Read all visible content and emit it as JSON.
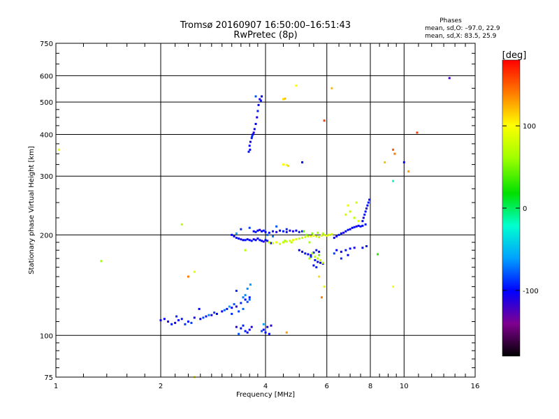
{
  "header": {
    "title_line1": "Tromsø 20160907 16:50:00–16:51:43",
    "title_line2": "RwPretec (8p)"
  },
  "stats": {
    "heading": "Phases",
    "line_o": "mean, sd,O: –97.0, 22.9",
    "line_x": "mean, sd,X: 83.5, 25.9"
  },
  "colorbar": {
    "label": "[deg]",
    "range": [
      -180,
      180
    ],
    "ticks": [
      100,
      0,
      -100
    ],
    "colors": {
      "180": "#ff0000",
      "140": "#ff7a00",
      "100": "#ffff00",
      "60": "#a0ff00",
      "20": "#00e000",
      "-20": "#00ffd0",
      "-60": "#00a0ff",
      "-100": "#0000ff",
      "-140": "#800090",
      "-180": "#000000"
    }
  },
  "chart_data": {
    "type": "scatter",
    "xlabel": "Frequency [MHz]",
    "ylabel": "Stationary phase Virtual Height [km]",
    "xscale": "log",
    "yscale": "log",
    "xlim": [
      1,
      16
    ],
    "ylim": [
      75,
      750
    ],
    "xticks": [
      1,
      2,
      4,
      6,
      8,
      10,
      16
    ],
    "yticks": [
      75,
      100,
      200,
      300,
      400,
      500,
      600,
      750
    ],
    "grid": true,
    "series": [
      {
        "points": [
          [
            2.0,
            111,
            -105
          ],
          [
            2.05,
            112,
            -100
          ],
          [
            2.1,
            110,
            -110
          ],
          [
            2.15,
            108,
            -95
          ],
          [
            2.2,
            109,
            -105
          ],
          [
            2.25,
            111,
            -100
          ],
          [
            2.35,
            108,
            -90
          ],
          [
            2.4,
            110,
            -100
          ],
          [
            2.5,
            113,
            -105
          ],
          [
            2.6,
            112,
            -100
          ],
          [
            2.7,
            114,
            -95
          ],
          [
            2.8,
            115,
            -110
          ],
          [
            2.9,
            116,
            -100
          ],
          [
            3.0,
            118,
            -105
          ],
          [
            3.1,
            120,
            -95
          ],
          [
            3.2,
            121,
            -100
          ],
          [
            3.3,
            122,
            -110
          ],
          [
            3.4,
            125,
            -90
          ],
          [
            3.5,
            128,
            -100
          ],
          [
            3.55,
            126,
            -80
          ],
          [
            3.6,
            130,
            -95
          ],
          [
            3.45,
            120,
            -75
          ],
          [
            3.35,
            118,
            -85
          ],
          [
            3.2,
            116,
            -90
          ],
          [
            3.6,
            128,
            -75
          ],
          [
            2.22,
            114,
            -90
          ],
          [
            2.45,
            109,
            -85
          ],
          [
            2.65,
            113,
            -80
          ],
          [
            2.85,
            117,
            -85
          ],
          [
            3.05,
            119,
            -75
          ],
          [
            3.25,
            124,
            -80
          ],
          [
            3.45,
            130,
            -70
          ],
          [
            3.55,
            138,
            -65
          ],
          [
            3.62,
            142,
            -60
          ],
          [
            3.15,
            122,
            -60
          ],
          [
            2.58,
            120,
            -100
          ],
          [
            2.3,
            112,
            -95
          ],
          [
            2.75,
            115,
            -70
          ],
          [
            3.3,
            136,
            -90
          ],
          [
            3.5,
            132,
            -65
          ],
          [
            3.3,
            106,
            -110
          ],
          [
            3.4,
            105,
            -100
          ],
          [
            3.5,
            103,
            -95
          ],
          [
            3.6,
            104,
            -105
          ],
          [
            3.45,
            107,
            -90
          ],
          [
            3.55,
            102,
            -100
          ],
          [
            3.35,
            101,
            -80
          ],
          [
            3.65,
            106,
            -110
          ],
          [
            3.95,
            104,
            -100
          ],
          [
            4.0,
            102,
            -95
          ],
          [
            4.05,
            106,
            -105
          ],
          [
            4.1,
            101,
            -100
          ],
          [
            3.9,
            103,
            -80
          ],
          [
            3.95,
            108,
            -60
          ],
          [
            4.15,
            107,
            -110
          ]
        ]
      },
      {
        "points": [
          [
            3.6,
            370,
            -100
          ],
          [
            3.62,
            380,
            -105
          ],
          [
            3.65,
            390,
            -95
          ],
          [
            3.68,
            400,
            -100
          ],
          [
            3.7,
            405,
            -110
          ],
          [
            3.72,
            415,
            -100
          ],
          [
            3.66,
            395,
            -90
          ],
          [
            3.61,
            360,
            -105
          ],
          [
            3.58,
            355,
            -95
          ],
          [
            3.75,
            430,
            -100
          ],
          [
            3.78,
            450,
            -105
          ],
          [
            3.8,
            470,
            -95
          ],
          [
            3.82,
            490,
            -100
          ],
          [
            3.85,
            510,
            -110
          ],
          [
            3.9,
            520,
            -100
          ],
          [
            3.88,
            505,
            -95
          ],
          [
            3.75,
            520,
            -80
          ]
        ]
      },
      {
        "points": [
          [
            3.2,
            200,
            -100
          ],
          [
            3.25,
            198,
            -105
          ],
          [
            3.3,
            196,
            -95
          ],
          [
            3.35,
            195,
            -100
          ],
          [
            3.4,
            194,
            -110
          ],
          [
            3.45,
            193,
            -100
          ],
          [
            3.5,
            193,
            -95
          ],
          [
            3.55,
            194,
            -105
          ],
          [
            3.6,
            193,
            -100
          ],
          [
            3.65,
            192,
            -95
          ],
          [
            3.7,
            194,
            -110
          ],
          [
            3.75,
            193,
            -100
          ],
          [
            3.8,
            195,
            -105
          ],
          [
            3.85,
            193,
            -95
          ],
          [
            3.9,
            192,
            -100
          ],
          [
            3.95,
            191,
            -110
          ],
          [
            4.0,
            193,
            -100
          ],
          [
            4.05,
            192,
            -95
          ],
          [
            4.1,
            190,
            -105
          ],
          [
            4.15,
            189,
            -100
          ],
          [
            3.7,
            205,
            -105
          ],
          [
            3.75,
            204,
            -95
          ],
          [
            3.8,
            206,
            -100
          ],
          [
            3.85,
            207,
            -110
          ],
          [
            3.9,
            205,
            -100
          ],
          [
            3.95,
            206,
            -95
          ],
          [
            4.0,
            204,
            -105
          ],
          [
            4.1,
            203,
            -100
          ],
          [
            4.2,
            205,
            -95
          ],
          [
            4.3,
            204,
            -110
          ],
          [
            4.4,
            206,
            -100
          ],
          [
            4.5,
            205,
            -95
          ],
          [
            4.6,
            204,
            -100
          ],
          [
            4.7,
            206,
            -105
          ],
          [
            4.8,
            205,
            -110
          ],
          [
            4.9,
            206,
            -100
          ],
          [
            5.0,
            204,
            -95
          ],
          [
            5.1,
            205,
            -100
          ],
          [
            3.4,
            208,
            -90
          ],
          [
            3.6,
            210,
            -85
          ],
          [
            4.3,
            212,
            -80
          ],
          [
            4.6,
            208,
            -90
          ],
          [
            4.2,
            198,
            -70
          ],
          [
            4.05,
            200,
            -75
          ],
          [
            3.3,
            202,
            -60
          ]
        ]
      },
      {
        "points": [
          [
            4.1,
            190,
            80
          ],
          [
            4.2,
            189,
            85
          ],
          [
            4.3,
            190,
            90
          ],
          [
            4.4,
            188,
            80
          ],
          [
            4.5,
            190,
            75
          ],
          [
            4.6,
            191,
            85
          ],
          [
            4.7,
            192,
            80
          ],
          [
            4.8,
            193,
            90
          ],
          [
            4.9,
            194,
            85
          ],
          [
            5.0,
            195,
            80
          ],
          [
            5.1,
            196,
            75
          ],
          [
            5.2,
            197,
            85
          ],
          [
            5.3,
            198,
            80
          ],
          [
            5.4,
            198,
            90
          ],
          [
            5.5,
            199,
            85
          ],
          [
            5.6,
            198,
            80
          ],
          [
            5.7,
            197,
            75
          ],
          [
            5.8,
            199,
            85
          ],
          [
            5.9,
            200,
            80
          ],
          [
            6.0,
            199,
            90
          ],
          [
            6.1,
            200,
            85
          ],
          [
            6.2,
            201,
            80
          ],
          [
            4.55,
            192,
            60
          ],
          [
            4.75,
            190,
            70
          ],
          [
            5.25,
            200,
            50
          ],
          [
            5.45,
            202,
            55
          ],
          [
            5.65,
            203,
            60
          ],
          [
            5.85,
            202,
            65
          ],
          [
            5.15,
            205,
            45
          ],
          [
            5.35,
            190,
            60
          ]
        ]
      },
      {
        "points": [
          [
            5.0,
            180,
            -100
          ],
          [
            5.1,
            178,
            -105
          ],
          [
            5.2,
            176,
            -95
          ],
          [
            5.3,
            175,
            -100
          ],
          [
            5.4,
            174,
            -110
          ],
          [
            5.5,
            177,
            -100
          ],
          [
            5.6,
            180,
            -95
          ],
          [
            5.7,
            178,
            -105
          ],
          [
            5.4,
            172,
            -90
          ],
          [
            5.55,
            168,
            -95
          ],
          [
            5.65,
            166,
            -100
          ],
          [
            5.75,
            165,
            -105
          ],
          [
            5.85,
            164,
            -110
          ],
          [
            5.5,
            162,
            -100
          ],
          [
            5.6,
            160,
            -95
          ],
          [
            5.45,
            176,
            60
          ],
          [
            5.55,
            172,
            70
          ],
          [
            5.65,
            170,
            75
          ],
          [
            5.75,
            168,
            80
          ],
          [
            5.85,
            165,
            70
          ],
          [
            5.35,
            170,
            65
          ],
          [
            5.7,
            174,
            50
          ]
        ]
      },
      {
        "points": [
          [
            6.3,
            196,
            -100
          ],
          [
            6.4,
            198,
            -105
          ],
          [
            6.5,
            200,
            -95
          ],
          [
            6.6,
            202,
            -100
          ],
          [
            6.7,
            203,
            -110
          ],
          [
            6.8,
            205,
            -100
          ],
          [
            6.9,
            207,
            -95
          ],
          [
            7.0,
            208,
            -105
          ],
          [
            7.1,
            210,
            -100
          ],
          [
            7.2,
            211,
            -95
          ],
          [
            7.3,
            212,
            -110
          ],
          [
            7.4,
            213,
            -100
          ],
          [
            7.5,
            212,
            -95
          ],
          [
            6.4,
            180,
            -100
          ],
          [
            6.6,
            178,
            -105
          ],
          [
            6.8,
            180,
            -95
          ],
          [
            7.0,
            182,
            -100
          ],
          [
            7.2,
            183,
            -110
          ],
          [
            7.6,
            183,
            -100
          ],
          [
            7.8,
            185,
            -95
          ],
          [
            6.9,
            174,
            -100
          ],
          [
            6.6,
            170,
            -90
          ],
          [
            6.3,
            176,
            -85
          ]
        ]
      },
      {
        "points": [
          [
            7.6,
            220,
            -100
          ],
          [
            7.65,
            225,
            -105
          ],
          [
            7.7,
            230,
            -95
          ],
          [
            7.75,
            235,
            -100
          ],
          [
            7.8,
            240,
            -110
          ],
          [
            7.85,
            245,
            -100
          ],
          [
            7.9,
            250,
            -95
          ],
          [
            7.95,
            255,
            -105
          ],
          [
            7.6,
            213,
            -100
          ],
          [
            7.75,
            215,
            -95
          ],
          [
            6.8,
            230,
            80
          ],
          [
            7.0,
            235,
            75
          ],
          [
            7.2,
            225,
            70
          ],
          [
            7.4,
            220,
            85
          ],
          [
            6.9,
            245,
            90
          ],
          [
            7.3,
            250,
            80
          ]
        ]
      },
      {
        "points": [
          [
            4.5,
            510,
            110
          ],
          [
            4.55,
            512,
            120
          ],
          [
            4.5,
            325,
            100
          ],
          [
            4.6,
            324,
            95
          ],
          [
            4.65,
            322,
            110
          ],
          [
            4.9,
            560,
            100
          ],
          [
            5.1,
            330,
            -100
          ],
          [
            5.9,
            440,
            160
          ],
          [
            6.2,
            550,
            120
          ],
          [
            8.8,
            330,
            120
          ],
          [
            9.3,
            360,
            150
          ],
          [
            9.4,
            350,
            140
          ],
          [
            10.0,
            330,
            -100
          ],
          [
            10.3,
            310,
            130
          ],
          [
            10.9,
            405,
            160
          ],
          [
            9.3,
            290,
            -20
          ],
          [
            13.5,
            590,
            -120
          ],
          [
            1.02,
            360,
            90
          ],
          [
            1.35,
            167,
            60
          ],
          [
            2.3,
            215,
            70
          ],
          [
            2.4,
            150,
            140
          ],
          [
            2.5,
            155,
            90
          ],
          [
            2.5,
            75,
            100
          ],
          [
            4.6,
            102,
            130
          ],
          [
            5.7,
            150,
            110
          ],
          [
            5.9,
            140,
            90
          ],
          [
            5.8,
            130,
            140
          ],
          [
            9.3,
            140,
            100
          ],
          [
            8.4,
            175,
            30
          ],
          [
            3.5,
            180,
            70
          ]
        ]
      }
    ]
  }
}
